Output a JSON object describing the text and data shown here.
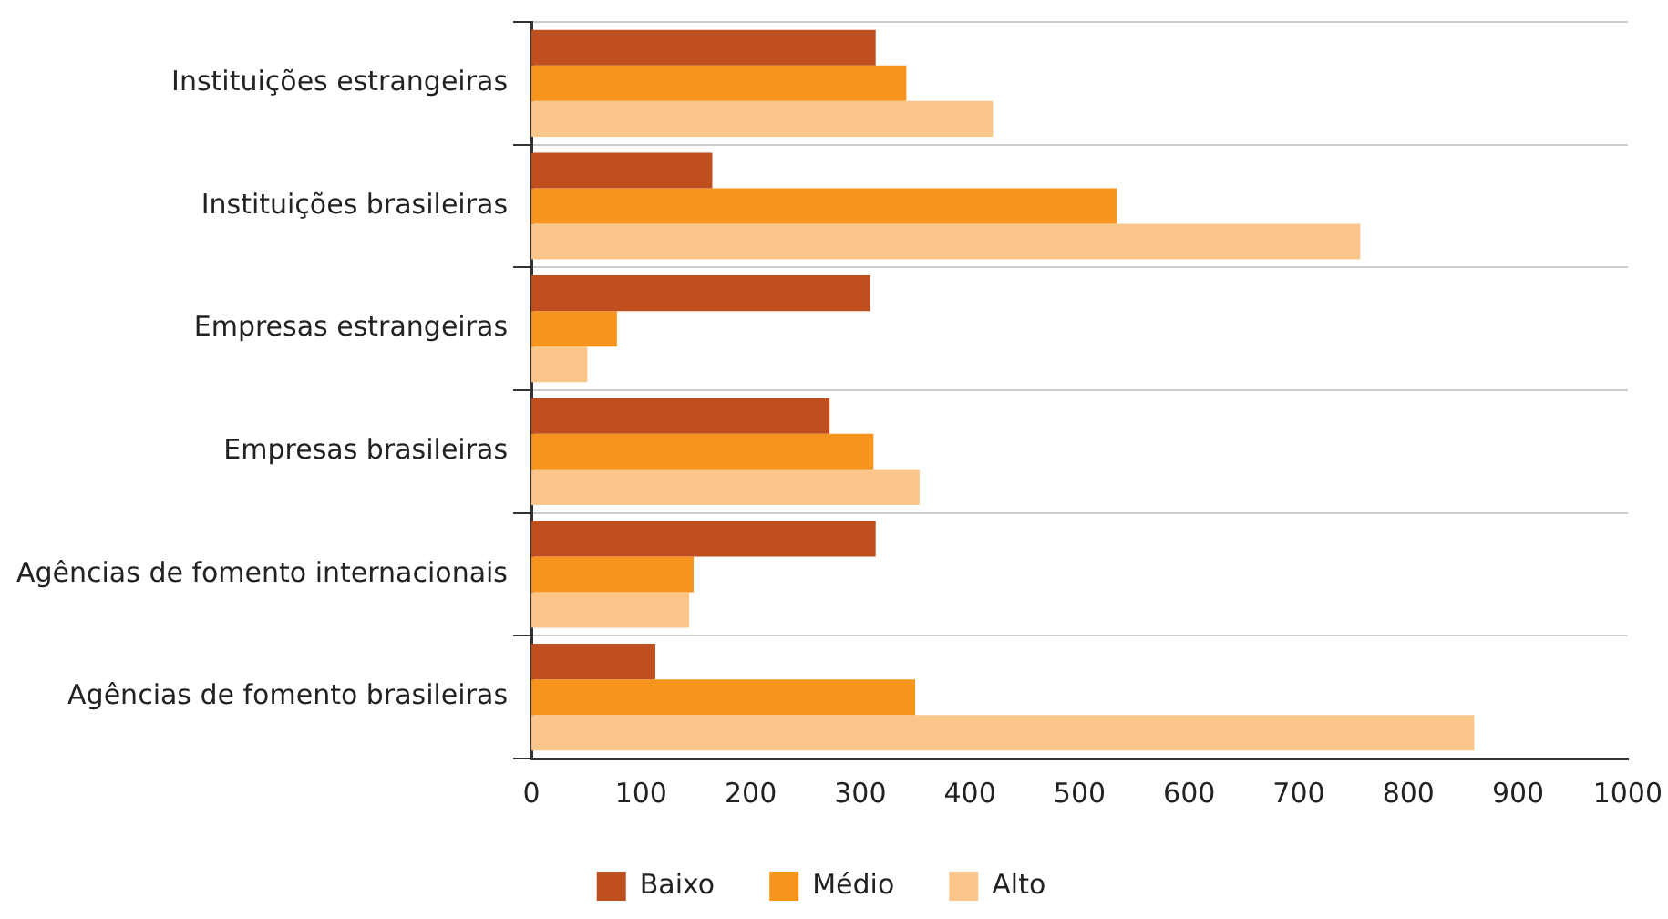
{
  "chart_data": {
    "type": "bar",
    "orientation": "horizontal",
    "categories": [
      "Instituições estrangeiras",
      "Instituições brasileiras",
      "Empresas estrangeiras",
      "Empresas brasileiras",
      "Agências de fomento internacionais",
      "Agências de fomento brasileiras"
    ],
    "series": [
      {
        "name": "Baixo",
        "color": "#bf4f1e",
        "values": [
          314,
          165,
          309,
          272,
          314,
          113
        ]
      },
      {
        "name": "Médio",
        "color": "#f7941d",
        "values": [
          342,
          534,
          78,
          312,
          148,
          350
        ]
      },
      {
        "name": "Alto",
        "color": "#fbc68a",
        "values": [
          421,
          756,
          51,
          354,
          144,
          860
        ]
      }
    ],
    "xlim": [
      0,
      1000
    ],
    "xticks": [
      0,
      100,
      200,
      300,
      400,
      500,
      600,
      700,
      800,
      900,
      1000
    ],
    "grid": "y",
    "legend": "bottom"
  }
}
